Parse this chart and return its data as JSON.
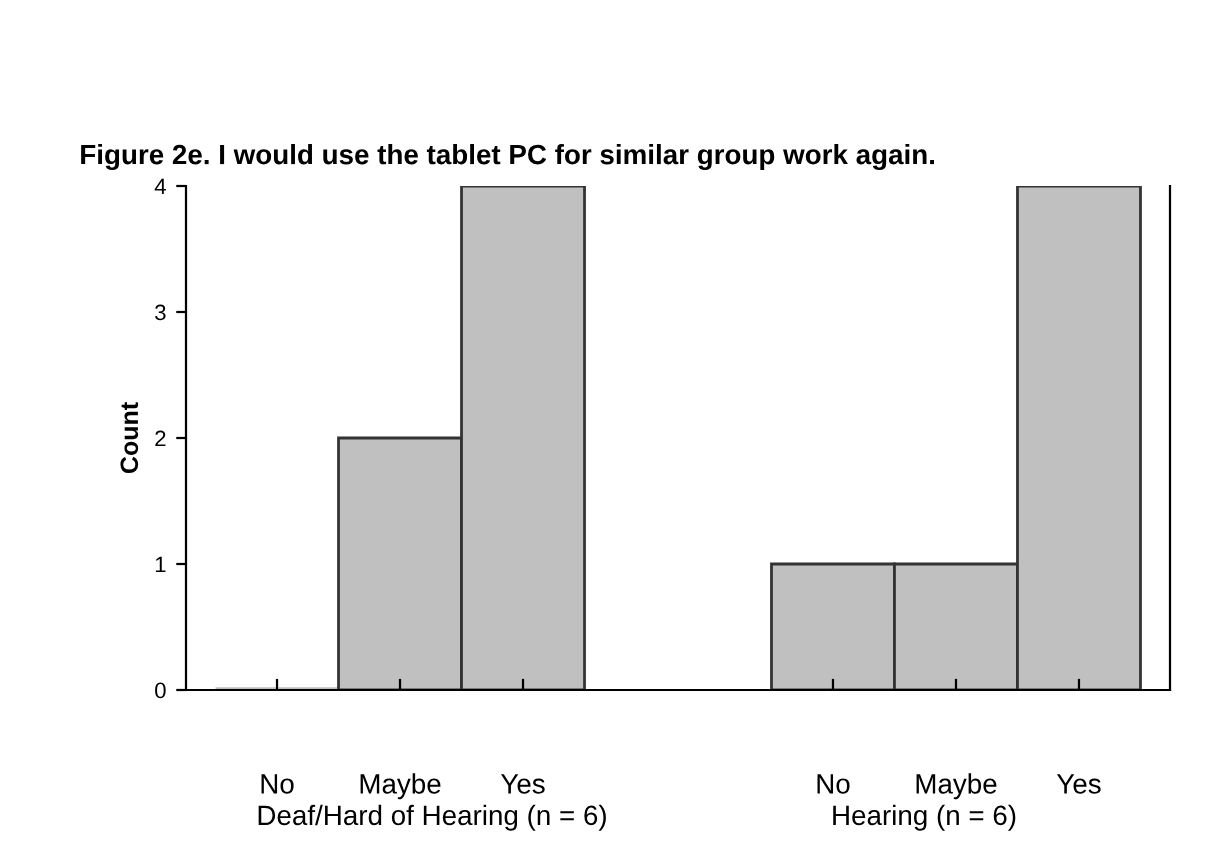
{
  "chart_data": [
    {
      "type": "bar",
      "title": "Figure 2e. I would use the tablet PC for similar group work again.",
      "categories": [
        "No",
        "Maybe",
        "Yes"
      ],
      "values": [
        0,
        2,
        4
      ],
      "color": "#c0c0c0",
      "xlabel": "Deaf/Hard of Hearing (n = 6)",
      "ylabel": "Count",
      "ylim": [
        0,
        4
      ],
      "yticks": [
        0,
        1,
        2,
        3,
        4
      ],
      "grid": false,
      "legend": false
    },
    {
      "type": "bar",
      "categories": [
        "No",
        "Maybe",
        "Yes"
      ],
      "values": [
        1,
        1,
        4
      ],
      "color": "#c0c0c0",
      "xlabel": "Hearing (n = 6)",
      "ylim": [
        0,
        4
      ],
      "yticks": [
        0,
        1,
        2,
        3,
        4
      ],
      "tick_labels": "x",
      "grid": false,
      "legend": false
    }
  ]
}
